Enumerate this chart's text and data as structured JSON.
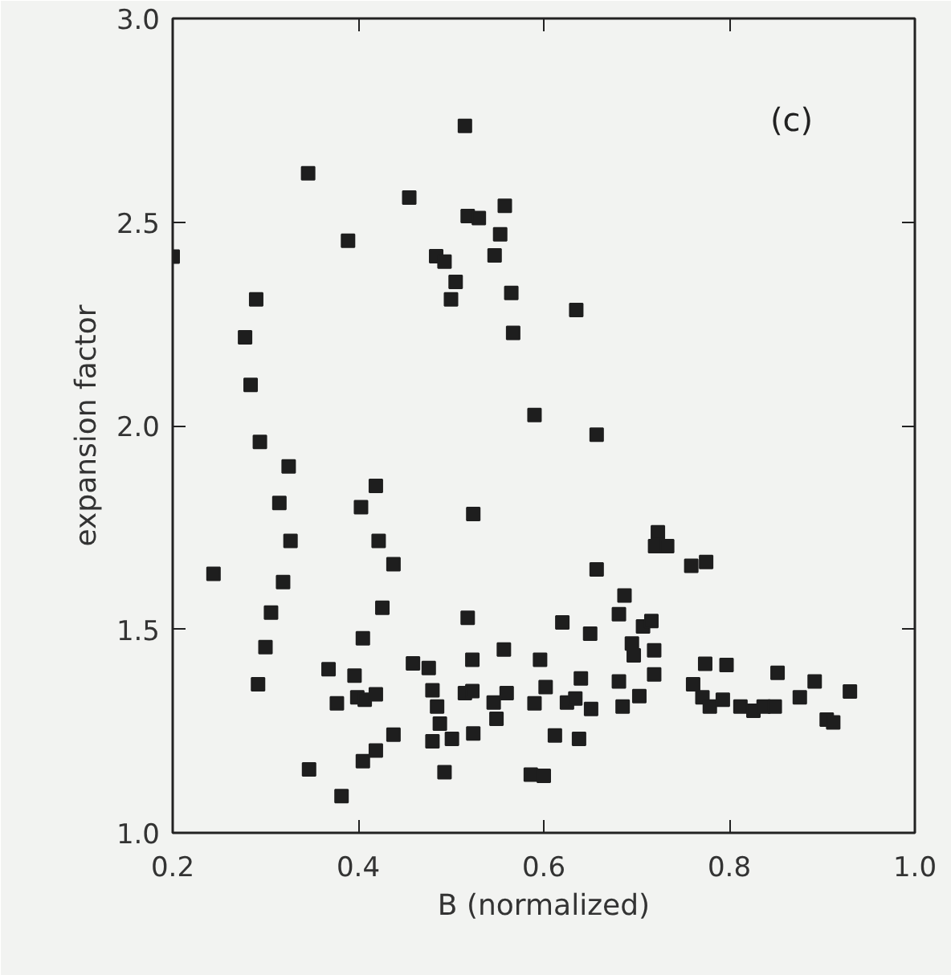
{
  "chart_data": {
    "type": "scatter",
    "xlabel": "B (normalized)",
    "ylabel": "expansion factor",
    "annotations": [
      "(c)"
    ],
    "xlim": [
      0.2,
      1.0
    ],
    "ylim": [
      1.0,
      3.0
    ],
    "xticks": [
      0.2,
      0.4,
      0.6,
      0.8,
      {
        "value": 1,
        "label": "1.0"
      }
    ],
    "yticks": [
      {
        "value": 1,
        "label": "1.0"
      },
      1.5,
      {
        "value": 2,
        "label": "2.0"
      },
      2.5,
      {
        "value": 3,
        "label": "3.0"
      }
    ],
    "grid": false,
    "marker": "square",
    "series": [
      {
        "color": "#1e1e1e",
        "x": [
          0.2,
          0.29,
          0.278,
          0.284,
          0.294,
          0.325,
          0.346,
          0.389,
          0.455,
          0.484,
          0.493,
          0.505,
          0.5,
          0.515,
          0.518,
          0.53,
          0.558,
          0.553,
          0.547,
          0.565,
          0.635,
          0.567,
          0.59,
          0.657,
          0.315,
          0.327,
          0.244,
          0.319,
          0.306,
          0.3,
          0.292,
          0.347,
          0.368,
          0.377,
          0.382,
          0.396,
          0.403,
          0.419,
          0.422,
          0.438,
          0.426,
          0.405,
          0.399,
          0.407,
          0.419,
          0.405,
          0.419,
          0.438,
          0.459,
          0.476,
          0.48,
          0.485,
          0.488,
          0.48,
          0.501,
          0.493,
          0.515,
          0.523,
          0.523,
          0.518,
          0.524,
          0.524,
          0.546,
          0.549,
          0.557,
          0.56,
          0.59,
          0.596,
          0.602,
          0.586,
          0.6,
          0.612,
          0.62,
          0.625,
          0.634,
          0.64,
          0.638,
          0.651,
          0.65,
          0.657,
          0.681,
          0.687,
          0.681,
          0.685,
          0.695,
          0.697,
          0.703,
          0.707,
          0.716,
          0.719,
          0.719,
          0.723,
          0.72,
          0.733,
          0.759,
          0.775,
          0.761,
          0.774,
          0.797,
          0.771,
          0.779,
          0.793,
          0.812,
          0.826,
          0.837,
          0.849,
          0.852,
          0.876,
          0.892,
          0.905,
          0.912,
          0.93
        ],
        "values": [
          2.415,
          2.31,
          2.217,
          2.1,
          1.96,
          1.9,
          2.62,
          2.454,
          2.56,
          2.416,
          2.403,
          2.353,
          2.31,
          2.736,
          2.515,
          2.51,
          2.54,
          2.47,
          2.418,
          2.326,
          2.284,
          2.228,
          2.026,
          1.978,
          1.81,
          1.717,
          1.636,
          1.616,
          1.541,
          1.456,
          1.365,
          1.156,
          1.402,
          1.318,
          1.09,
          1.386,
          1.8,
          1.852,
          1.717,
          1.66,
          1.553,
          1.478,
          1.333,
          1.327,
          1.34,
          1.176,
          1.202,
          1.241,
          1.416,
          1.405,
          1.35,
          1.31,
          1.268,
          1.225,
          1.231,
          1.149,
          1.343,
          1.348,
          1.425,
          1.528,
          1.783,
          1.244,
          1.32,
          1.28,
          1.45,
          1.343,
          1.318,
          1.425,
          1.358,
          1.143,
          1.14,
          1.239,
          1.517,
          1.32,
          1.33,
          1.379,
          1.231,
          1.304,
          1.489,
          1.647,
          1.537,
          1.583,
          1.372,
          1.31,
          1.465,
          1.436,
          1.336,
          1.507,
          1.52,
          1.448,
          1.389,
          1.738,
          1.704,
          1.704,
          1.656,
          1.665,
          1.365,
          1.415,
          1.412,
          1.333,
          1.31,
          1.327,
          1.31,
          1.3,
          1.31,
          1.31,
          1.393,
          1.333,
          1.372,
          1.278,
          1.271,
          1.347
        ]
      }
    ]
  }
}
